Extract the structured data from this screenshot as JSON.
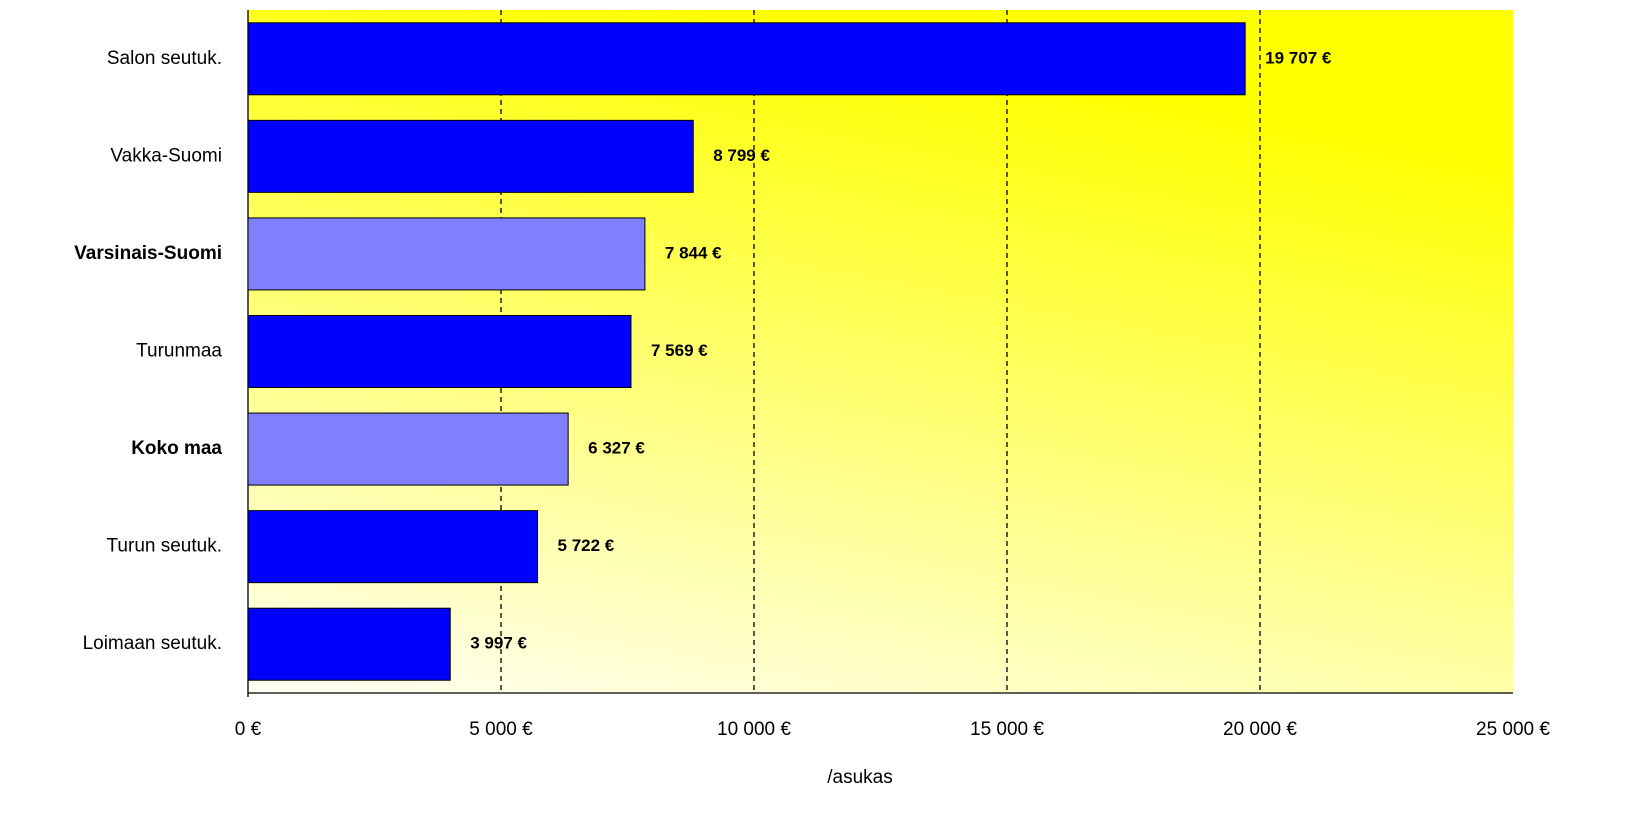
{
  "chart_data": {
    "type": "hbar",
    "xlabel": "/asukas",
    "categories": [
      "Salon seutuk.",
      "Vakka-Suomi",
      "Varsinais-Suomi",
      "Turunmaa",
      "Koko maa",
      "Turun seutuk.",
      "Loimaan seutuk."
    ],
    "values": [
      19707,
      8799,
      7844,
      7569,
      6327,
      5722,
      3997
    ],
    "value_labels": [
      "19 707 €",
      "8 799 €",
      "7 844 €",
      "7 569 €",
      "6 327 €",
      "5 722 €",
      "3 997 €"
    ],
    "color": "#0000ff",
    "colors": [
      "#0000ff",
      "#0000ff",
      "#8080ff",
      "#0000ff",
      "#8080ff",
      "#0000ff",
      "#0000ff"
    ],
    "xlim": [
      0,
      25000
    ],
    "xticks": [
      {
        "value": 0,
        "label": "0 €"
      },
      {
        "value": 5000,
        "label": "5 000 €"
      },
      {
        "value": 10000,
        "label": "10 000 €"
      },
      {
        "value": 15000,
        "label": "15 000 €"
      },
      {
        "value": 20000,
        "label": "20 000 €"
      },
      {
        "value": 25000,
        "label": "25 000 €"
      }
    ],
    "grid": true
  }
}
